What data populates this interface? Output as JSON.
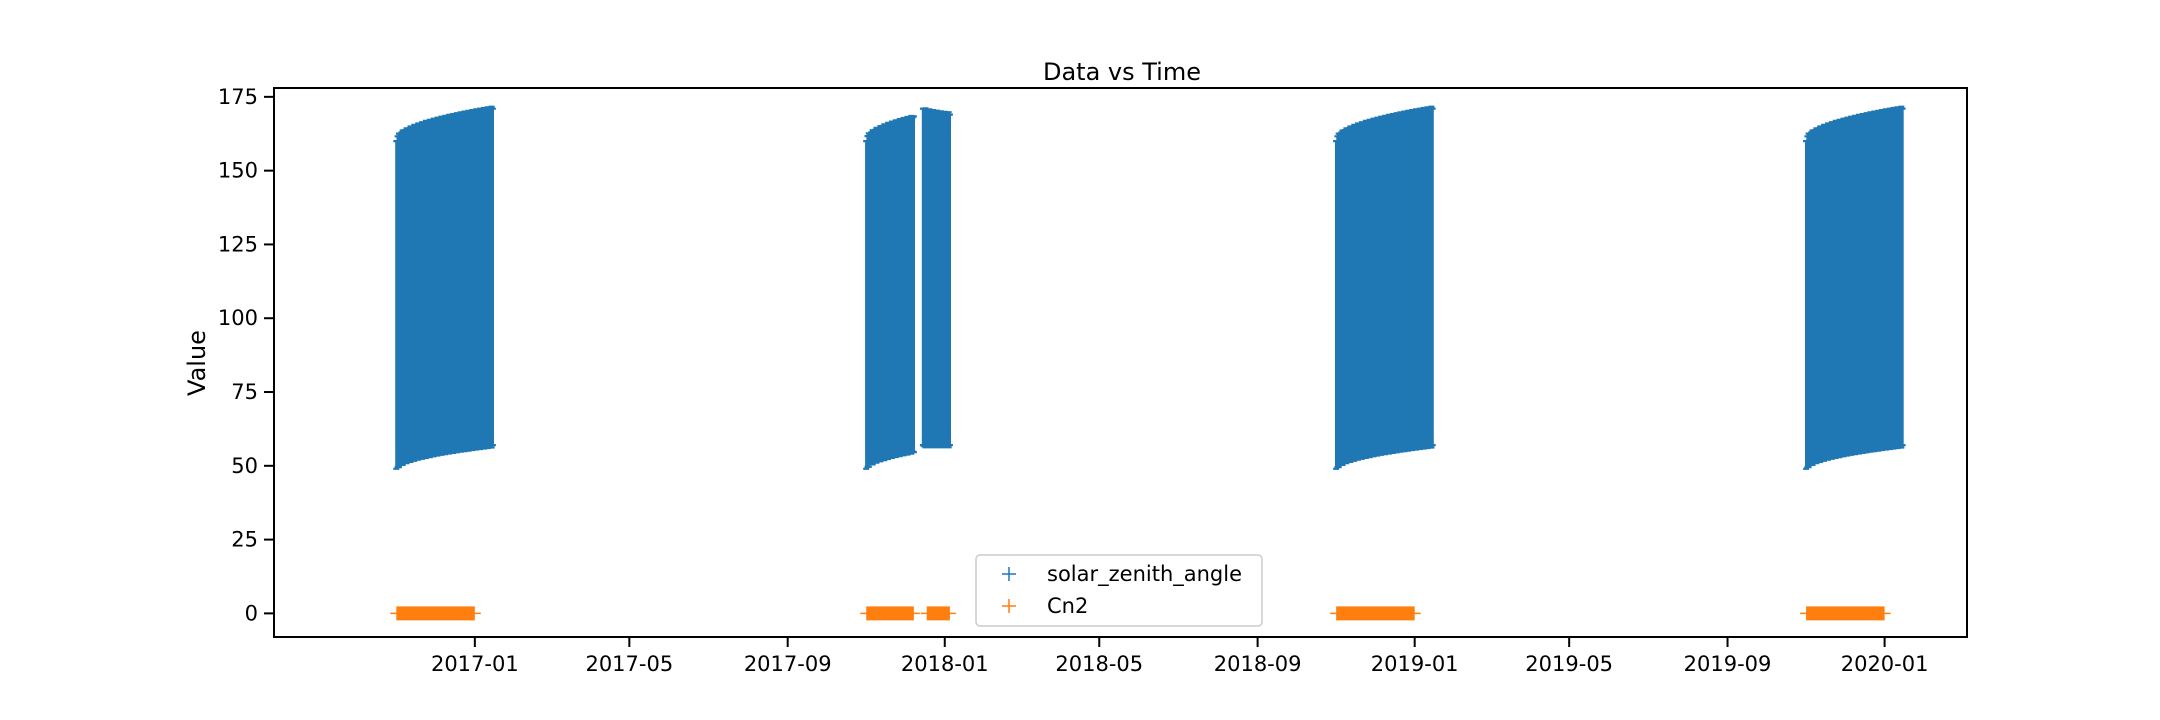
{
  "chart_data": {
    "type": "scatter",
    "title": "Data vs Time",
    "xlabel": "",
    "ylabel": "Value",
    "xlim": [
      "2016-07-29",
      "2020-03-05"
    ],
    "ylim": [
      -8,
      178
    ],
    "x_ticks": [
      "2017-01",
      "2017-05",
      "2017-09",
      "2018-01",
      "2018-05",
      "2018-09",
      "2019-01",
      "2019-05",
      "2019-09",
      "2020-01"
    ],
    "y_ticks": [
      0,
      25,
      50,
      75,
      100,
      125,
      150,
      175
    ],
    "grid": false,
    "legend_position": "bottom-center",
    "marker": "+",
    "series": [
      {
        "name": "solar_zenith_angle",
        "color": "#1f77b4",
        "segments": [
          {
            "start": "2016-11-01",
            "end": "2017-01-15",
            "min_start": 49,
            "min_end": 57,
            "max_start": 160,
            "max_end": 171
          },
          {
            "start": "2017-11-01",
            "end": "2017-12-08",
            "min_start": 49,
            "min_end": 55,
            "max_start": 160,
            "max_end": 168
          },
          {
            "start": "2017-12-15",
            "end": "2018-01-05",
            "min_start": 57,
            "min_end": 57,
            "max_start": 171,
            "max_end": 169
          },
          {
            "start": "2018-11-01",
            "end": "2019-01-15",
            "min_start": 49,
            "min_end": 57,
            "max_start": 160,
            "max_end": 171
          },
          {
            "start": "2019-11-01",
            "end": "2020-01-15",
            "min_start": 49,
            "min_end": 57,
            "max_start": 160,
            "max_end": 171
          }
        ]
      },
      {
        "name": "Cn2",
        "color": "#ff7f0e",
        "segments": [
          {
            "start": "2016-11-01",
            "end": "2017-01-01",
            "value": 0
          },
          {
            "start": "2017-11-01",
            "end": "2017-12-08",
            "value": 0
          },
          {
            "start": "2017-12-18",
            "end": "2018-01-05",
            "value": 0
          },
          {
            "start": "2018-11-01",
            "end": "2019-01-01",
            "value": 0
          },
          {
            "start": "2019-11-01",
            "end": "2020-01-01",
            "value": 0
          }
        ]
      }
    ]
  }
}
